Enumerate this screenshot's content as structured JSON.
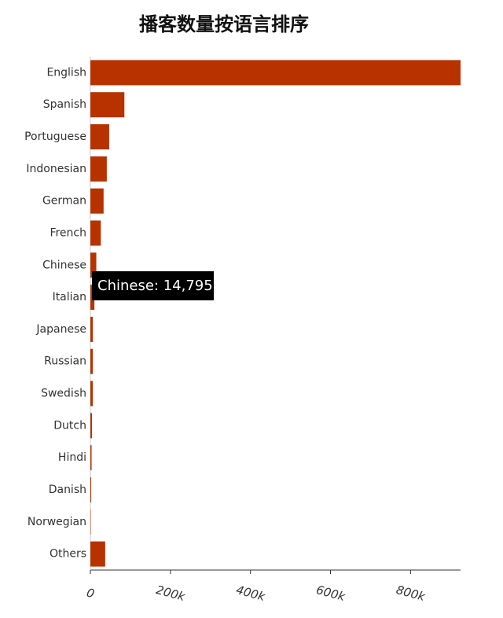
{
  "chart_data": {
    "type": "hbar",
    "title": "播客数量按语言排序",
    "categories": [
      "English",
      "Spanish",
      "Portuguese",
      "Indonesian",
      "German",
      "French",
      "Chinese",
      "Italian",
      "Japanese",
      "Russian",
      "Swedish",
      "Dutch",
      "Hindi",
      "Danish",
      "Norwegian",
      "Others"
    ],
    "values": [
      925000,
      85000,
      47000,
      41000,
      33000,
      26000,
      14795,
      10000,
      6000,
      6000,
      6000,
      4000,
      3000,
      2000,
      1000,
      37000
    ],
    "color": "#b83200",
    "xlim": [
      0,
      925000
    ],
    "xticks": [
      0,
      {
        "value": 200000,
        "label": "200k"
      },
      {
        "value": 400000,
        "label": "400k"
      },
      {
        "value": 600000,
        "label": "600k"
      },
      {
        "value": 800000,
        "label": "800k"
      }
    ],
    "tooltip": "Chinese: 14,795"
  }
}
